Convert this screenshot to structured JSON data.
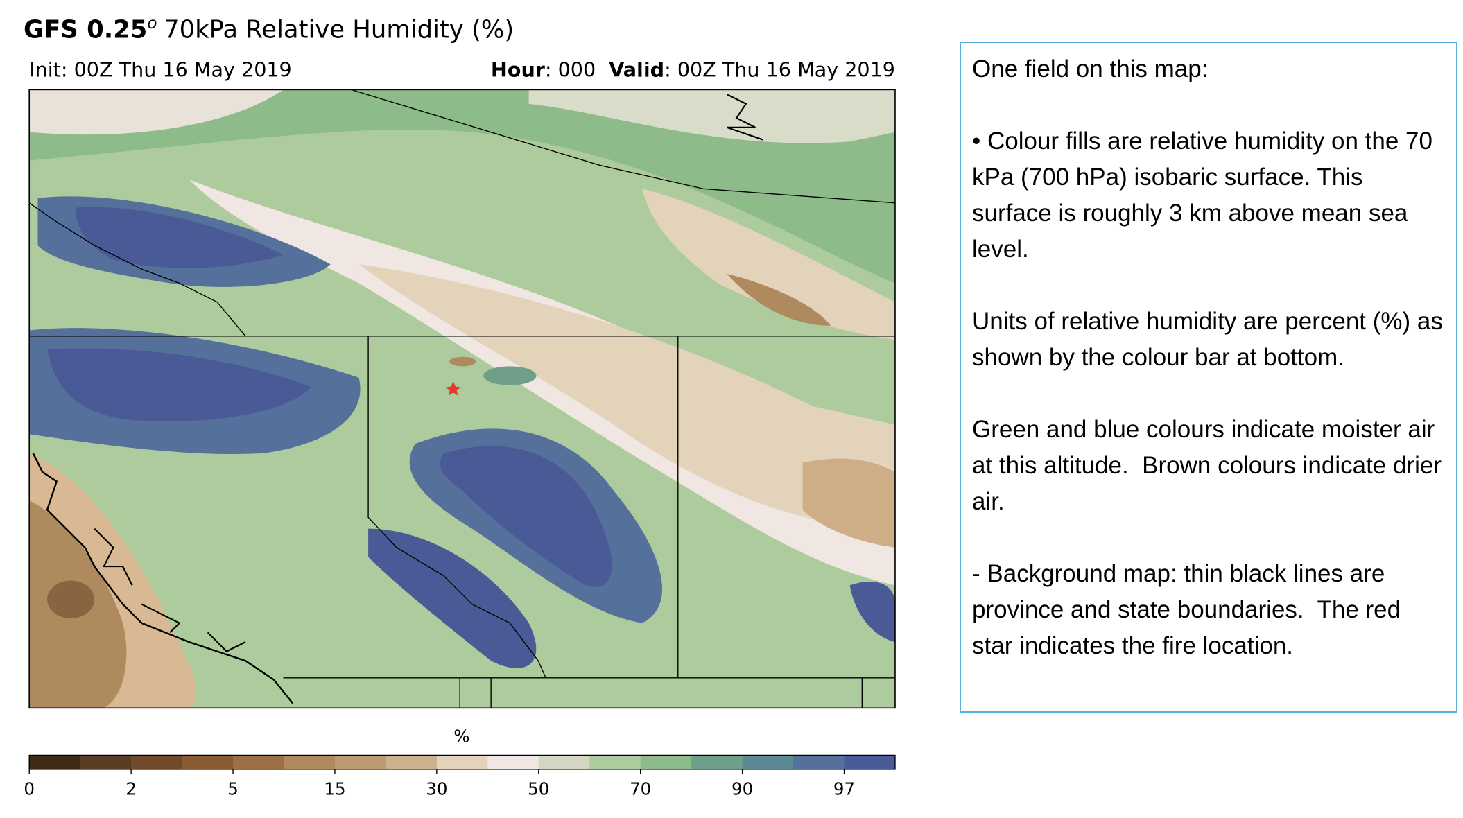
{
  "header": {
    "title_bold": "GFS 0.25",
    "title_sup": "o",
    "title_rest": "70kPa Relative Humidity (%)",
    "init": "Init: 00Z Thu 16 May 2019",
    "hour_label": "Hour",
    "hour_value": ": 000",
    "valid_label": "Valid",
    "valid_value": ": 00Z Thu 16 May 2019"
  },
  "colorbar": {
    "label": "%",
    "ticks": [
      0,
      2,
      5,
      15,
      30,
      50,
      70,
      90,
      97
    ],
    "colors": [
      "#3d2b17",
      "#5a3d22",
      "#704a2a",
      "#8a5c35",
      "#9d6f45",
      "#b08a5f",
      "#bd9a72",
      "#cdb08c",
      "#e3d3bb",
      "#f0e6e2",
      "#d3d6c2",
      "#aecb9d",
      "#8dbb8a",
      "#6f9f89",
      "#5b8a95",
      "#55709a",
      "#4a5a96"
    ]
  },
  "text_box": {
    "heading": "One field on this map:",
    "paragraphs": [
      "• Colour fills are relative humidity on the 70 kPa (700 hPa) isobaric surface. This surface is roughly 3 km above mean sea level.",
      "Units of relative humidity are percent (%) as shown by the colour bar at bottom.",
      "Green and blue colours indicate moister air at this altitude.  Brown colours indicate drier air.",
      "- Background map: thin black lines are province and state boundaries.  The red star indicates the fire location."
    ]
  }
}
